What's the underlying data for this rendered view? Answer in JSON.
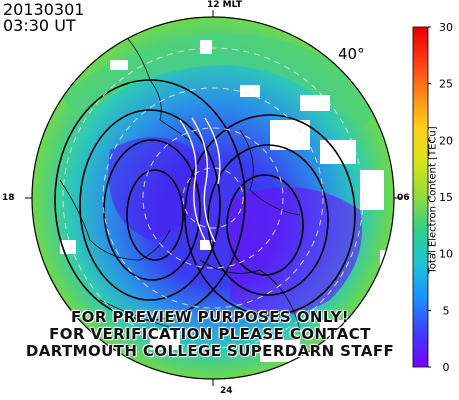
{
  "header": {
    "date": "20130301",
    "time": "03:30 UT"
  },
  "map": {
    "mlt_labels": {
      "top": "12 MLT",
      "left": "18",
      "right": "06",
      "bottom": "24"
    },
    "latitude_label": "40°",
    "overlay_lines": [
      "FOR PREVIEW PURPOSES ONLY!",
      "FOR VERIFICATION PLEASE CONTACT",
      "DARTMOUTH COLLEGE SUPERDARN STAFF"
    ]
  },
  "colorbar": {
    "label": "Total Electron Content [TECu]",
    "min": 0,
    "max": 30,
    "ticks": [
      "0",
      "5",
      "10",
      "15",
      "20",
      "25",
      "30"
    ],
    "colors": [
      "#7a00ff",
      "#3f3cff",
      "#1d8fff",
      "#1ec2d8",
      "#2ecf8f",
      "#8fdc3a",
      "#d6e31e",
      "#ffd21a",
      "#ff8a1a",
      "#ff3a14",
      "#e30000"
    ]
  }
}
